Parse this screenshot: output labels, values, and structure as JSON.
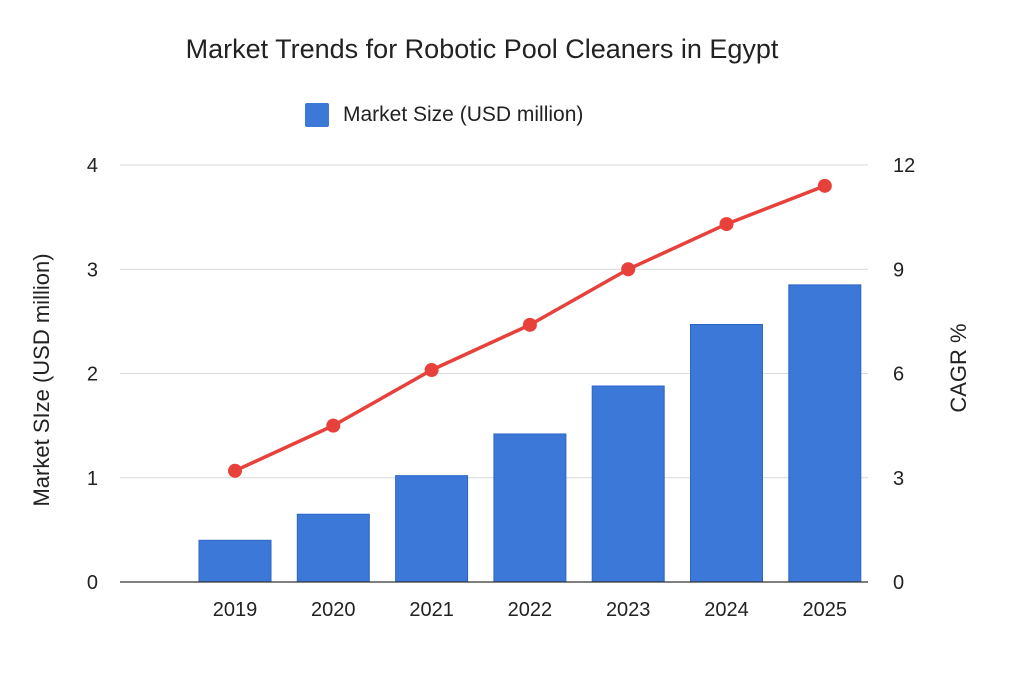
{
  "chart_data": {
    "type": "bar",
    "title": "Market Trends for Robotic Pool Cleaners in Egypt",
    "categories": [
      "2019",
      "2020",
      "2021",
      "2022",
      "2023",
      "2024",
      "2025"
    ],
    "series": [
      {
        "name": "Market Size (USD million)",
        "kind": "bar",
        "axis": "left",
        "color": "#3b78d8",
        "values": [
          0.4,
          0.65,
          1.02,
          1.42,
          1.88,
          2.47,
          2.85
        ]
      },
      {
        "name": "",
        "kind": "line",
        "axis": "right",
        "color": "#e8403a",
        "values": [
          3.2,
          4.5,
          6.1,
          7.4,
          9.0,
          10.3,
          11.4
        ]
      }
    ],
    "ylabel": "Market SIze (USD million)",
    "y2label": "CAGR %",
    "xlabel": "",
    "ylim": [
      0,
      4
    ],
    "y2lim": [
      0,
      12
    ],
    "yticks": [
      "0",
      "1",
      "2",
      "3",
      "4"
    ],
    "y2ticks": [
      "0",
      "3",
      "6",
      "9",
      "12"
    ],
    "grid": true,
    "legend_position": "top-center"
  }
}
